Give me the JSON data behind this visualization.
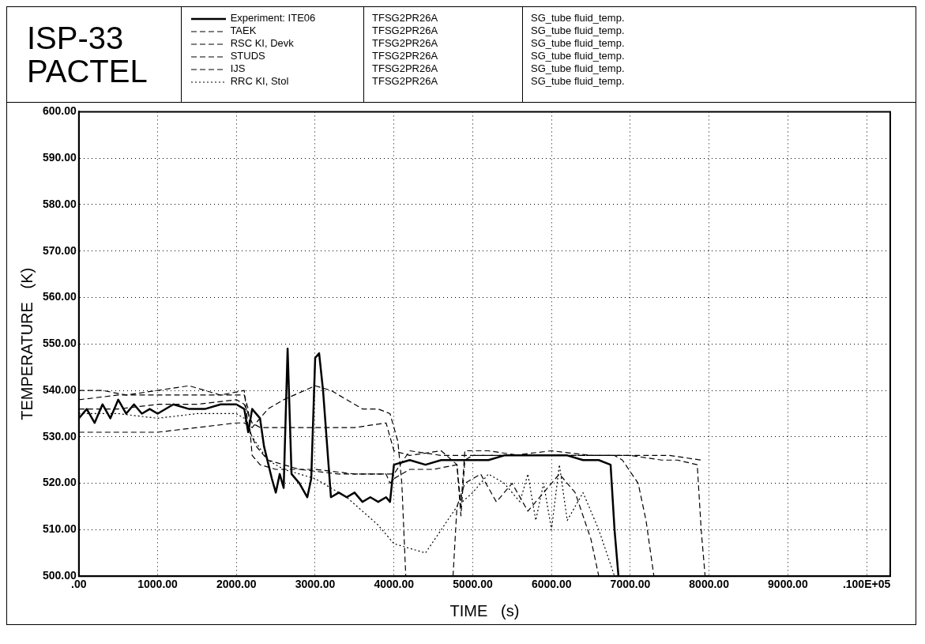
{
  "chart_data": {
    "type": "line",
    "title": "ISP-33 PACTEL",
    "xlabel": "TIME   (s)",
    "ylabel": "TEMPERATURE   (K)",
    "annotations": [
      "TFSG2PR26A",
      "TFSG2PR26A",
      "TFSG2PR26A",
      "TFSG2PR26A",
      "TFSG2PR26A",
      "TFSG2PR26A",
      "SG_tube fluid_temp.",
      "SG_tube fluid_temp.",
      "SG_tube fluid_temp.",
      "SG_tube fluid_temp.",
      "SG_tube fluid_temp.",
      "SG_tube fluid_temp."
    ],
    "xlim": [
      0,
      10300
    ],
    "ylim": [
      500,
      600
    ],
    "xticks": [
      {
        "value": 0,
        "label": ".00"
      },
      {
        "value": 1000,
        "label": "1000.00"
      },
      {
        "value": 2000,
        "label": "2000.00"
      },
      {
        "value": 3000,
        "label": "3000.00"
      },
      {
        "value": 4000,
        "label": "4000.00"
      },
      {
        "value": 5000,
        "label": "5000.00"
      },
      {
        "value": 6000,
        "label": "6000.00"
      },
      {
        "value": 7000,
        "label": "7000.00"
      },
      {
        "value": 8000,
        "label": "8000.00"
      },
      {
        "value": 9000,
        "label": "9000.00"
      },
      {
        "value": 10000,
        "label": ".100E+05"
      }
    ],
    "yticks": [
      {
        "value": 500,
        "label": "500.00"
      },
      {
        "value": 510,
        "label": "510.00"
      },
      {
        "value": 520,
        "label": "520.00"
      },
      {
        "value": 530,
        "label": "530.00"
      },
      {
        "value": 540,
        "label": "540.00"
      },
      {
        "value": 550,
        "label": "550.00"
      },
      {
        "value": 560,
        "label": "560.00"
      },
      {
        "value": 570,
        "label": "570.00"
      },
      {
        "value": 580,
        "label": "580.00"
      },
      {
        "value": 590,
        "label": "590.00"
      },
      {
        "value": 600,
        "label": "600.00"
      }
    ],
    "grid": true,
    "legend": "top",
    "marker": "none",
    "series": [
      {
        "name": "Experiment: ITE06",
        "color": "#000000",
        "line_style": "solid",
        "x": [
          0,
          100,
          200,
          300,
          400,
          500,
          600,
          700,
          800,
          900,
          1000,
          1200,
          1400,
          1600,
          1800,
          2000,
          2100,
          2150,
          2200,
          2300,
          2350,
          2450,
          2500,
          2550,
          2600,
          2650,
          2700,
          2800,
          2900,
          2950,
          3000,
          3050,
          3100,
          3200,
          3300,
          3400,
          3500,
          3600,
          3700,
          3800,
          3900,
          3950,
          4000,
          4200,
          4400,
          4600,
          4800,
          5000,
          5200,
          5400,
          5600,
          5800,
          6000,
          6200,
          6400,
          6600,
          6750,
          6800,
          6850
        ],
        "values": [
          534,
          536,
          533,
          537,
          534,
          538,
          535,
          537,
          535,
          536,
          535,
          537,
          536,
          536,
          537,
          537,
          536,
          531,
          536,
          534,
          528,
          521,
          518,
          522,
          519,
          549,
          522,
          520,
          517,
          521,
          547,
          548,
          540,
          517,
          518,
          517,
          518,
          516,
          517,
          516,
          517,
          516,
          524,
          525,
          524,
          525,
          525,
          525,
          525,
          526,
          526,
          526,
          526,
          526,
          525,
          525,
          524,
          510,
          500
        ]
      },
      {
        "name": "TAEK",
        "color": "#000000",
        "line_style": "dashed",
        "x": [
          0,
          500,
          1000,
          1500,
          2000,
          2100,
          2150,
          2200,
          2300,
          2500,
          3000,
          3500,
          3900,
          3950,
          4000,
          4200,
          4500,
          4800,
          4850,
          4900,
          5000,
          5500,
          6000,
          6500,
          6800,
          6900,
          7100,
          7200,
          7300
        ],
        "values": [
          538,
          539,
          539,
          539,
          539,
          539,
          536,
          526,
          524,
          523,
          523,
          522,
          522,
          520,
          521,
          523,
          523,
          524,
          513,
          525,
          526,
          526,
          526,
          526,
          526,
          525,
          520,
          512,
          500
        ]
      },
      {
        "name": "RSC KI, Devk",
        "color": "#000000",
        "line_style": "dashed",
        "x": [
          0,
          500,
          1000,
          1500,
          2000,
          2100,
          2200,
          2400,
          2600,
          3000,
          3200,
          3400,
          3600,
          3800,
          3950,
          4050,
          4100,
          4150,
          4700,
          4750,
          4800,
          4900,
          5100,
          5300,
          5500,
          5700,
          5900,
          6100,
          6300,
          6500,
          6600
        ],
        "values": [
          531,
          531,
          531,
          532,
          533,
          533,
          532,
          536,
          538,
          541,
          540,
          538,
          536,
          536,
          535,
          529,
          520,
          500,
          null,
          500,
          515,
          520,
          522,
          516,
          520,
          514,
          518,
          522,
          518,
          508,
          500
        ]
      },
      {
        "name": "STUDS",
        "color": "#000000",
        "line_style": "dashed",
        "x": [
          0,
          300,
          600,
          1000,
          1400,
          1800,
          2100,
          2150,
          2250,
          2400,
          2800,
          3300,
          3800,
          4000,
          4200,
          4600,
          5000,
          5500,
          6000,
          6500,
          7000,
          7500,
          7900
        ],
        "values": [
          540,
          540,
          539,
          540,
          541,
          539,
          540,
          532,
          528,
          525,
          523,
          522,
          522,
          522,
          527,
          526,
          526,
          526,
          527,
          526,
          526,
          526,
          525
        ]
      },
      {
        "name": "IJS",
        "color": "#000000",
        "line_style": "dashed",
        "x": [
          0,
          500,
          1000,
          1500,
          2000,
          2100,
          2200,
          2300,
          2500,
          3000,
          3500,
          3900,
          4000,
          4200,
          4600,
          4800,
          4850,
          4900,
          5200,
          5600,
          6000,
          6500,
          7000,
          7400,
          7600,
          7850,
          7900,
          7950
        ],
        "values": [
          536,
          536,
          537,
          537,
          538,
          537,
          533,
          532,
          532,
          532,
          532,
          533,
          527,
          526,
          527,
          524,
          515,
          527,
          527,
          526,
          526,
          526,
          526,
          525,
          525,
          524,
          510,
          500
        ]
      },
      {
        "name": "RRC KI, Stol",
        "color": "#000000",
        "line_style": "dotted",
        "x": [
          0,
          500,
          1000,
          1500,
          2000,
          2100,
          2200,
          2400,
          2600,
          2800,
          3000,
          3200,
          3400,
          3600,
          3800,
          4000,
          4200,
          4400,
          4600,
          4800,
          5000,
          5200,
          5400,
          5600,
          5700,
          5800,
          5900,
          6000,
          6100,
          6200,
          6400,
          6600,
          6800
        ],
        "values": [
          535,
          535,
          534,
          535,
          535,
          534,
          530,
          525,
          523,
          522,
          521,
          519,
          517,
          514,
          511,
          507,
          506,
          505,
          510,
          515,
          518,
          522,
          520,
          516,
          522,
          512,
          520,
          510,
          524,
          512,
          518,
          510,
          500
        ]
      }
    ]
  }
}
